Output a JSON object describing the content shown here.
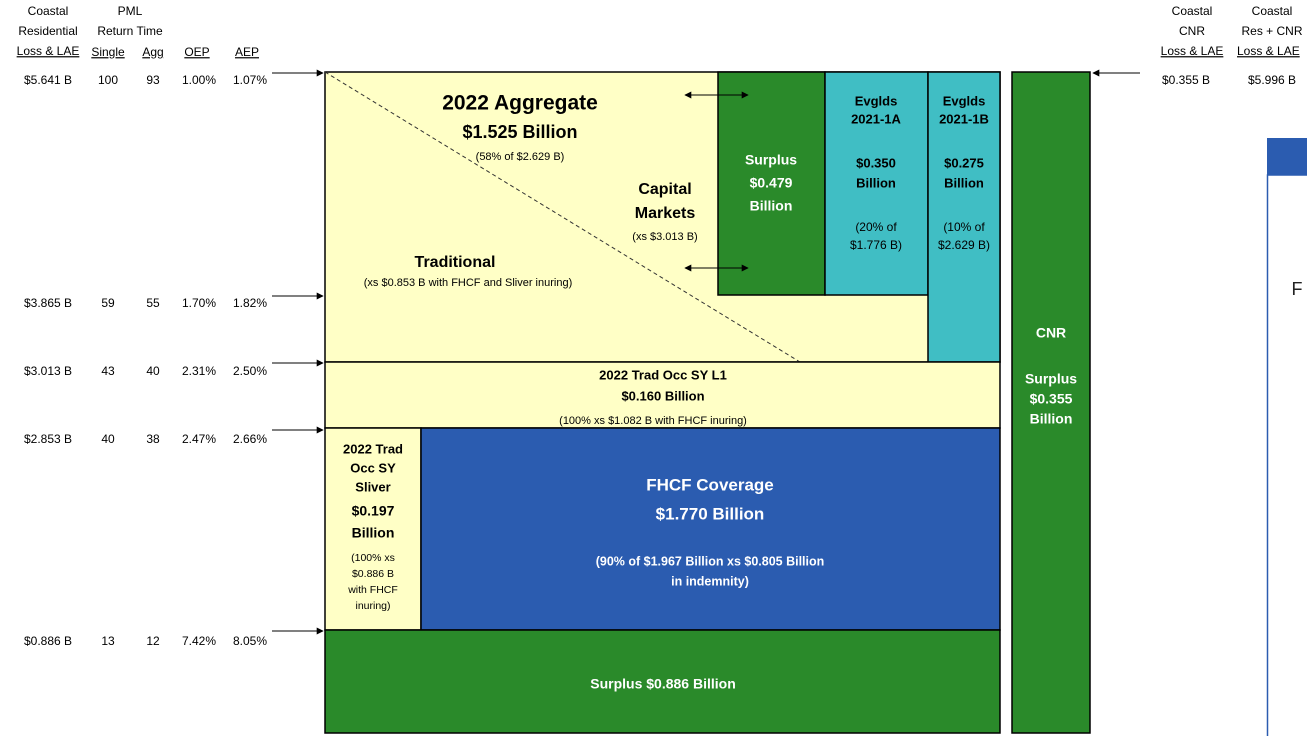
{
  "left_table": {
    "headers": {
      "loss": [
        "Coastal",
        "Residential",
        "Loss & LAE"
      ],
      "pml": [
        "PML",
        "Return Time"
      ],
      "single": "Single",
      "agg": "Agg",
      "oep": "OEP",
      "aep": "AEP"
    },
    "rows": [
      [
        "$5.641 B",
        "100",
        "93",
        "1.00%",
        "1.07%"
      ],
      [
        "$3.865 B",
        "59",
        "55",
        "1.70%",
        "1.82%"
      ],
      [
        "$3.013 B",
        "43",
        "40",
        "2.31%",
        "2.50%"
      ],
      [
        "$2.853 B",
        "40",
        "38",
        "2.47%",
        "2.66%"
      ],
      [
        "$0.886 B",
        "13",
        "12",
        "7.42%",
        "8.05%"
      ]
    ]
  },
  "right_table": {
    "cnr_header": [
      "Coastal",
      "CNR",
      "Loss & LAE"
    ],
    "cnr_value": "$0.355 B",
    "total_header": [
      "Coastal",
      "Res + CNR",
      "Loss & LAE"
    ],
    "total_value": "$5.996 B"
  },
  "tower": {
    "aggregate": {
      "title": "2022 Aggregate",
      "amount": "$1.525 Billion",
      "note": "(58% of $2.629 B)"
    },
    "capital_markets": {
      "lines": [
        "Capital",
        "Markets"
      ],
      "note": "(xs $3.013 B)"
    },
    "traditional": {
      "title": "Traditional",
      "note": "(xs $0.853 B with FHCF and Sliver inuring)"
    },
    "surplus_top": [
      "Surplus",
      "$0.479",
      "Billion"
    ],
    "evglds_1a": {
      "title": [
        "Evglds",
        "2021-1A"
      ],
      "amount": [
        "$0.350",
        "Billion"
      ],
      "note": [
        "(20% of",
        "$1.776 B)"
      ]
    },
    "evglds_1b": {
      "title": [
        "Evglds",
        "2021-1B"
      ],
      "amount": [
        "$0.275",
        "Billion"
      ],
      "note": [
        "(10% of",
        "$2.629 B)"
      ]
    },
    "trad_occ_l1": {
      "title": "2022 Trad Occ SY L1",
      "amount": "$0.160 Billion",
      "note": "(100% xs $1.082 B with FHCF inuring)"
    },
    "sliver": {
      "title": [
        "2022 Trad",
        "Occ SY",
        "Sliver"
      ],
      "amount": [
        "$0.197",
        "Billion"
      ],
      "note": [
        "(100% xs",
        "$0.886 B",
        "with FHCF",
        "inuring)"
      ]
    },
    "fhcf": {
      "title": "FHCF Coverage",
      "amount": "$1.770 Billion",
      "note": [
        "(90% of $1.967 Billion xs $0.805 Billion",
        "in indemnity)"
      ]
    },
    "surplus_bottom": "Surplus $0.886 Billion",
    "cnr": {
      "title": "CNR",
      "lines": [
        "Surplus",
        "$0.355",
        "Billion"
      ]
    }
  },
  "side_panel": {
    "text": "F"
  }
}
